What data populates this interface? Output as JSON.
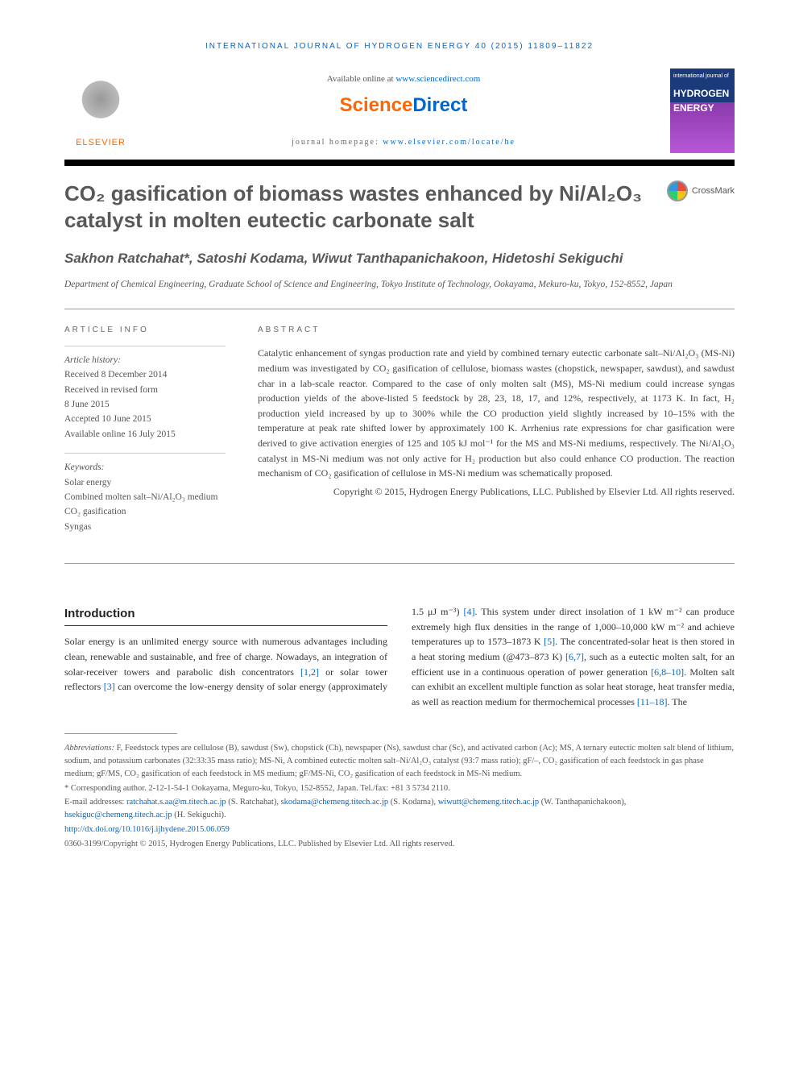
{
  "running_head": "INTERNATIONAL JOURNAL OF HYDROGEN ENERGY 40 (2015) 11809–11822",
  "header": {
    "elsevier": "ELSEVIER",
    "available_prefix": "Available online at ",
    "available_link": "www.sciencedirect.com",
    "sd_logo_left": "Science",
    "sd_logo_right": "Direct",
    "homepage_label": "journal homepage: ",
    "homepage_link": "www.elsevier.com/locate/he",
    "cover_small": "international journal of",
    "cover_big1": "HYDROGEN",
    "cover_big2": "ENERGY"
  },
  "title": "CO₂ gasification of biomass wastes enhanced by Ni/Al₂O₃ catalyst in molten eutectic carbonate salt",
  "crossmark": "CrossMark",
  "authors": "Sakhon Ratchahat*, Satoshi Kodama, Wiwut Tanthapanichakoon, Hidetoshi Sekiguchi",
  "affiliation": "Department of Chemical Engineering, Graduate School of Science and Engineering, Tokyo Institute of Technology, Ookayama, Mekuro-ku, Tokyo, 152-8552, Japan",
  "info": {
    "label": "ARTICLE INFO",
    "history_head": "Article history:",
    "history": [
      "Received 8 December 2014",
      "Received in revised form",
      "8 June 2015",
      "Accepted 10 June 2015",
      "Available online 16 July 2015"
    ],
    "keywords_head": "Keywords:",
    "keywords": [
      "Solar energy",
      "Combined molten salt–Ni/Al₂O₃ medium",
      "CO₂ gasification",
      "Syngas"
    ]
  },
  "abstract": {
    "label": "ABSTRACT",
    "text": "Catalytic enhancement of syngas production rate and yield by combined ternary eutectic carbonate salt–Ni/Al₂O₃ (MS-Ni) medium was investigated by CO₂ gasification of cellulose, biomass wastes (chopstick, newspaper, sawdust), and sawdust char in a lab-scale reactor. Compared to the case of only molten salt (MS), MS-Ni medium could increase syngas production yields of the above-listed 5 feedstock by 28, 23, 18, 17, and 12%, respectively, at 1173 K. In fact, H₂ production yield increased by up to 300% while the CO production yield slightly increased by 10–15% with the temperature at peak rate shifted lower by approximately 100 K. Arrhenius rate expressions for char gasification were derived to give activation energies of 125 and 105 kJ mol⁻¹ for the MS and MS-Ni mediums, respectively. The Ni/Al₂O₃ catalyst in MS-Ni medium was not only active for H₂ production but also could enhance CO production. The reaction mechanism of CO₂ gasification of cellulose in MS-Ni medium was schematically proposed.",
    "copyright": "Copyright © 2015, Hydrogen Energy Publications, LLC. Published by Elsevier Ltd. All rights reserved."
  },
  "intro": {
    "heading": "Introduction",
    "col1": "Solar energy is an unlimited energy source with numerous advantages including clean, renewable and sustainable, and free of charge. Nowadays, an integration of solar-receiver towers and parabolic dish concentrators ",
    "ref1": "[1,2]",
    "col1b": " or solar tower reflectors ",
    "ref2": "[3]",
    "col1c": " can overcome the low-energy density of solar energy (approximately 1.5 μJ m⁻³) ",
    "ref3": "[4]",
    "col1d": ". This system under ",
    "col2a": "direct insolation of 1 kW m⁻² can produce extremely high flux densities in the range of 1,000–10,000 kW m⁻² and achieve temperatures up to 1573–1873 K ",
    "ref4": "[5]",
    "col2b": ". The concentrated-solar heat is then stored in a heat storing medium (@473–873 K) ",
    "ref5": "[6,7]",
    "col2c": ", such as a eutectic molten salt, for an efficient use in a continuous operation of power generation ",
    "ref6": "[6,8–10]",
    "col2d": ". Molten salt can exhibit an excellent multiple function as solar heat storage, heat transfer media, as well as reaction medium for thermochemical processes ",
    "ref7": "[11–18]",
    "col2e": ". The"
  },
  "footnotes": {
    "abbrev_label": "Abbreviations:",
    "abbrev": " F, Feedstock types are cellulose (B), sawdust (Sw), chopstick (Ch), newspaper (Ns), sawdust char (Sc), and activated carbon (Ac); MS, A ternary eutectic molten salt blend of lithium, sodium, and potassium carbonates (32:33:35 mass ratio); MS-Ni, A combined eutectic molten salt–Ni/Al₂O₃ catalyst (93:7 mass ratio); gF/–, CO₂ gasification of each feedstock in gas phase medium; gF/MS, CO₂ gasification of each feedstock in MS medium; gF/MS-Ni, CO₂ gasification of each feedstock in MS-Ni medium.",
    "corr": "* Corresponding author. 2-12-1-54-1 Ookayama, Meguro-ku, Tokyo, 152-8552, Japan. Tel./fax: +81 3 5734 2110.",
    "email_label": "E-mail addresses: ",
    "emails": [
      {
        "addr": "ratchahat.s.aa@m.titech.ac.jp",
        "who": " (S. Ratchahat), "
      },
      {
        "addr": "skodama@chemeng.titech.ac.jp",
        "who": " (S. Kodama), "
      },
      {
        "addr": "wiwutt@chemeng.titech.ac.jp",
        "who": " (W. Tanthapanichakoon), "
      },
      {
        "addr": "hsekiguc@chemeng.titech.ac.jp",
        "who": " (H. Sekiguchi)."
      }
    ],
    "doi": "http://dx.doi.org/10.1016/j.ijhydene.2015.06.059",
    "issn": "0360-3199/Copyright © 2015, Hydrogen Energy Publications, LLC. Published by Elsevier Ltd. All rights reserved."
  },
  "colors": {
    "link": "#0066cc",
    "orange": "#ff6600",
    "title_gray": "#58585a",
    "rule": "#999999"
  }
}
